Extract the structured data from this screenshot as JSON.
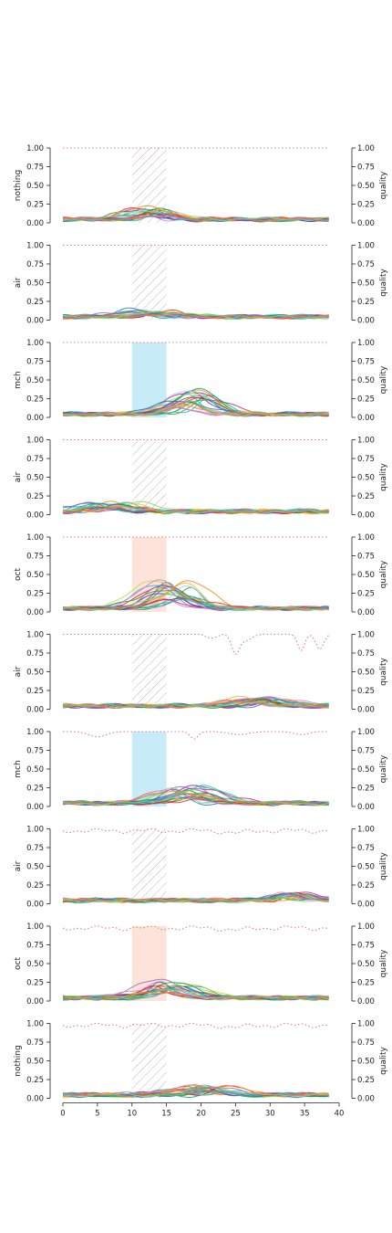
{
  "chart_data": {
    "type": "line",
    "x_ticks": [
      "0",
      "5",
      "10",
      "15",
      "20",
      "25",
      "30",
      "35",
      "40"
    ],
    "xlim": [
      0,
      40
    ],
    "ylim": [
      0,
      1
    ],
    "y_ticks": [
      "0.00",
      "0.25",
      "0.50",
      "0.75",
      "1.00"
    ],
    "right_ylabel": "quality",
    "stim_window": [
      10,
      15
    ],
    "quality_color": "#e07b91",
    "line_colors": [
      "#1f77b4",
      "#2ca02c",
      "#d62728",
      "#9467bd",
      "#17becf",
      "#e377c2",
      "#ff7f0e",
      "#7fd36b",
      "#3a3ad6",
      "#c51b8a",
      "#00a087",
      "#b2df3a",
      "#fbb040",
      "#8cd3f5"
    ],
    "window_styles": {
      "hatch": "#b8b8b8",
      "mch": "#c7ebf7",
      "oct": "#fde3d9"
    },
    "panels": [
      {
        "ylabel": "nothing",
        "window": "hatch",
        "response_peak": 0.16,
        "response_center": 12.5,
        "quality": "flat"
      },
      {
        "ylabel": "air",
        "window": "hatch",
        "response_peak": 0.09,
        "response_center": 13.0,
        "quality": "flat"
      },
      {
        "ylabel": "mch",
        "window": "mch",
        "response_peak": 0.34,
        "response_center": 18.5,
        "quality": "flat"
      },
      {
        "ylabel": "air",
        "window": "hatch",
        "response_peak": 0.12,
        "response_center": 7.0,
        "quality": "flat"
      },
      {
        "ylabel": "oct",
        "window": "oct",
        "response_peak": 0.38,
        "response_center": 16.5,
        "quality": "flat"
      },
      {
        "ylabel": "air",
        "window": "hatch",
        "response_peak": 0.12,
        "response_center": 28.0,
        "quality": "dips_a"
      },
      {
        "ylabel": "mch",
        "window": "mch",
        "response_peak": 0.24,
        "response_center": 17.5,
        "quality": "dips_b"
      },
      {
        "ylabel": "air",
        "window": "hatch",
        "response_peak": 0.11,
        "response_center": 33.0,
        "quality": "wobble"
      },
      {
        "ylabel": "oct",
        "window": "oct",
        "response_peak": 0.24,
        "response_center": 15.0,
        "quality": "wobble"
      },
      {
        "ylabel": "nothing",
        "window": "hatch",
        "response_peak": 0.13,
        "response_center": 21.0,
        "quality": "wobble"
      }
    ]
  }
}
